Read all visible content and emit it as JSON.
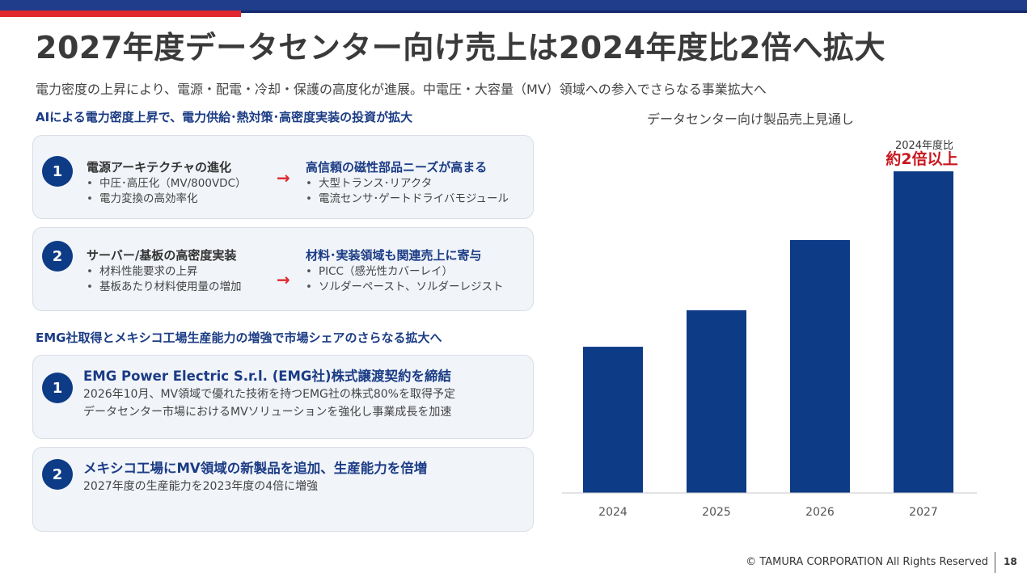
{
  "header": {
    "title": "2027年度データセンター向け売上は2024年度比2倍へ拡大",
    "subtitle": "電力密度の上昇により、電源・配電・冷却・保護の高度化が進展。中電圧・大容量（MV）領域への参入でさらなる事業拡大へ"
  },
  "section1": {
    "heading": "AIによる電力密度上昇で、電力供給･熱対策･高密度実装の投資が拡大",
    "cards": [
      {
        "number": "1",
        "left_title": "電源アーキテクチャの進化",
        "left_bullets": [
          "中圧･高圧化（MV/800VDC）",
          "電力変換の高効率化"
        ],
        "arrow": "→",
        "right_title": "高信頼の磁性部品ニーズが高まる",
        "right_bullets": [
          "大型トランス･リアクタ",
          "電流センサ･ゲートドライバモジュール"
        ]
      },
      {
        "number": "2",
        "left_title": "サーバー/基板の高密度実装",
        "left_bullets": [
          "材料性能要求の上昇",
          "基板あたり材料使用量の増加"
        ],
        "arrow": "→",
        "right_title": "材料･実装領域も関連売上に寄与",
        "right_bullets": [
          "PICC（感光性カバーレイ）",
          "ソルダーペースト、ソルダーレジスト"
        ]
      }
    ]
  },
  "section2": {
    "heading": "EMG社取得とメキシコ工場生産能力の増強で市場シェアのさらなる拡大へ",
    "cards": [
      {
        "number": "1",
        "title": "EMG Power Electric S.r.l. (EMG社)株式譲渡契約を締結",
        "lines": [
          "2026年10月、MV領域で優れた技術を持つEMG社の株式80%を取得予定",
          "データセンター市場におけるMVソリューションを強化し事業成長を加速"
        ]
      },
      {
        "number": "2",
        "title": "メキシコ工場にMV領域の新製品を追加、生産能力を倍増",
        "lines": [
          "2027年度の生産能力を2023年度の4倍に増強"
        ]
      }
    ]
  },
  "chart": {
    "title": "データセンター向け製品売上見通し",
    "annotation_line1": "2024年度比",
    "annotation_line2": "約2倍以上",
    "bar_color": "#0d3b86",
    "annotation_color": "#c8161d"
  },
  "chart_data": {
    "type": "bar",
    "categories": [
      "2024",
      "2025",
      "2026",
      "2027"
    ],
    "values": [
      1.0,
      1.25,
      1.73,
      2.2
    ],
    "title": "データセンター向け製品売上見通し",
    "xlabel": "",
    "ylabel": "",
    "ylim": [
      0,
      2.2
    ],
    "grid": false
  },
  "footer": {
    "copyright": "© TAMURA CORPORATION All Rights Reserved",
    "page_number": "18"
  }
}
